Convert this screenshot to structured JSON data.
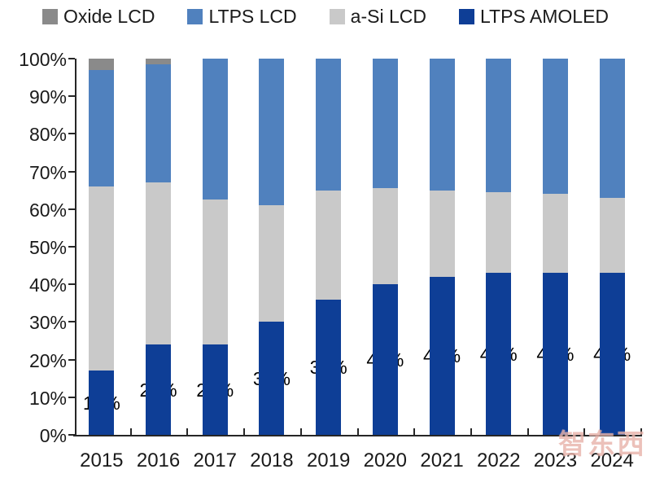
{
  "legend": {
    "items": [
      {
        "label": "Oxide LCD",
        "color": "#8a8a8a"
      },
      {
        "label": "LTPS LCD",
        "color": "#5081be"
      },
      {
        "label": "a-Si LCD",
        "color": "#c9c9c9"
      },
      {
        "label": "LTPS AMOLED",
        "color": "#0e3e96"
      }
    ]
  },
  "watermark_text": "智东西",
  "chart_data": {
    "type": "bar",
    "stacked": true,
    "normalized": true,
    "unit": "%",
    "title": "",
    "xlabel": "",
    "ylabel": "",
    "ylim": [
      0,
      100
    ],
    "grid": false,
    "legend_position": "top",
    "categories": [
      "2015",
      "2016",
      "2017",
      "2018",
      "2019",
      "2020",
      "2021",
      "2022",
      "2023",
      "2024"
    ],
    "y_ticks": [
      "100%",
      "90%",
      "80%",
      "70%",
      "60%",
      "50%",
      "40%",
      "30%",
      "20%",
      "10%",
      "0%"
    ],
    "series": [
      {
        "name": "LTPS AMOLED",
        "color": "#0e3e96",
        "pattern": "solid",
        "values": [
          17,
          24,
          24,
          30,
          36,
          40,
          42,
          43,
          43,
          43
        ],
        "data_labels": [
          "17%",
          "24%",
          "24%",
          "30%",
          "36%",
          "40%",
          "42%",
          "43%",
          "43%",
          "43%"
        ]
      },
      {
        "name": "a-Si LCD",
        "color": "#c9c9c9",
        "pattern": "dots",
        "values": [
          49,
          43,
          38.5,
          31,
          29,
          25.5,
          23,
          21.5,
          21,
          20
        ],
        "data_labels": null
      },
      {
        "name": "LTPS LCD",
        "color": "#5081be",
        "pattern": "solid",
        "values": [
          31,
          31.5,
          37.5,
          39,
          35,
          34.5,
          35,
          35.5,
          36,
          37
        ],
        "data_labels": null
      },
      {
        "name": "Oxide LCD",
        "color": "#8a8a8a",
        "pattern": "hatch",
        "values": [
          3,
          1.5,
          0,
          0,
          0,
          0,
          0,
          0,
          0,
          0
        ],
        "data_labels": null
      }
    ]
  }
}
